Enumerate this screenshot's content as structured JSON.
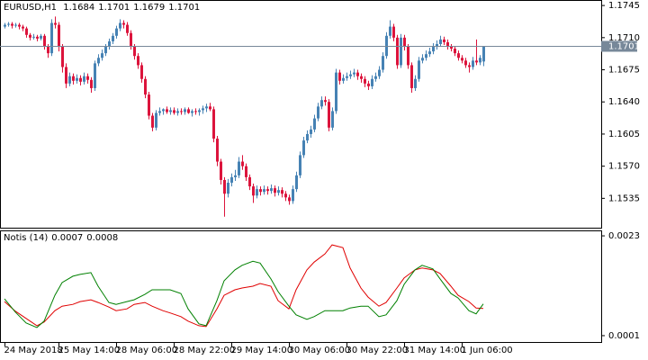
{
  "chart_data": [
    {
      "type": "candlestick",
      "title": "EURUSD,H1",
      "up_color": "#4682b4",
      "down_color": "#dc143c",
      "price_line_color": "#778899",
      "xlim": [
        -1.25,
        165.75
      ],
      "ylim": [
        1.1503,
        1.1751
      ],
      "yticks": [
        1.1535,
        {
          "value": 1.157,
          "label": "1.1570"
        },
        1.1605,
        {
          "value": 1.164,
          "label": "1.1640"
        },
        1.1675,
        {
          "value": 1.171,
          "label": "1.1710"
        },
        1.1745
      ],
      "categories": [
        "24 May 2018",
        null,
        null,
        null,
        null,
        null,
        null,
        null,
        null,
        null,
        null,
        null,
        null,
        null,
        null,
        "25 May 14:00",
        null,
        null,
        null,
        null,
        null,
        null,
        null,
        null,
        null,
        null,
        null,
        null,
        null,
        null,
        null,
        "28 May 06:00",
        null,
        null,
        null,
        null,
        null,
        null,
        null,
        null,
        null,
        null,
        null,
        null,
        null,
        null,
        null,
        "28 May 22:00",
        null,
        null,
        null,
        null,
        null,
        null,
        null,
        null,
        null,
        null,
        null,
        null,
        null,
        null,
        null,
        "29 May 14:00",
        null,
        null,
        null,
        null,
        null,
        null,
        null,
        null,
        null,
        null,
        null,
        null,
        null,
        null,
        null,
        "30 May 06:00",
        null,
        null,
        null,
        null,
        null,
        null,
        null,
        null,
        null,
        null,
        null,
        null,
        null,
        null,
        null,
        "30 May 22:00",
        null,
        null,
        null,
        null,
        null,
        null,
        null,
        null,
        null,
        null,
        null,
        null,
        null,
        null,
        null,
        "31 May 14:00",
        null,
        null,
        null,
        null,
        null,
        null,
        null,
        null,
        null,
        null,
        null,
        null,
        null,
        null,
        null,
        "1 Jun 06:00",
        null,
        null,
        null,
        null,
        null,
        null
      ],
      "ohlc": [
        [
          1.1722,
          1.1726,
          1.172,
          1.1724
        ],
        [
          1.1724,
          1.1727,
          1.1722,
          1.1725
        ],
        [
          1.1725,
          1.1727,
          1.172,
          1.1723
        ],
        [
          1.1723,
          1.1726,
          1.1721,
          1.1724
        ],
        [
          1.1724,
          1.1726,
          1.1719,
          1.1722
        ],
        [
          1.1722,
          1.1724,
          1.1717,
          1.172
        ],
        [
          1.172,
          1.1722,
          1.171,
          1.1713
        ],
        [
          1.1713,
          1.1715,
          1.1707,
          1.171
        ],
        [
          1.171,
          1.1714,
          1.1708,
          1.1711
        ],
        [
          1.1711,
          1.1713,
          1.1706,
          1.1709
        ],
        [
          1.1709,
          1.1714,
          1.1707,
          1.1712
        ],
        [
          1.1712,
          1.1714,
          1.1697,
          1.17
        ],
        [
          1.17,
          1.1703,
          1.1688,
          1.1693
        ],
        [
          1.1693,
          1.173,
          1.169,
          1.1726
        ],
        [
          1.1726,
          1.1733,
          1.172,
          1.1724
        ],
        [
          1.1724,
          1.1727,
          1.1695,
          1.17
        ],
        [
          1.17,
          1.1703,
          1.1672,
          1.1678
        ],
        [
          1.1678,
          1.1682,
          1.1655,
          1.166
        ],
        [
          1.166,
          1.1672,
          1.1657,
          1.1668
        ],
        [
          1.1668,
          1.1671,
          1.1659,
          1.1663
        ],
        [
          1.1663,
          1.167,
          1.166,
          1.1666
        ],
        [
          1.1666,
          1.1669,
          1.1658,
          1.1662
        ],
        [
          1.1662,
          1.1672,
          1.1659,
          1.1668
        ],
        [
          1.1668,
          1.1671,
          1.166,
          1.1664
        ],
        [
          1.1664,
          1.1667,
          1.165,
          1.1655
        ],
        [
          1.1655,
          1.1685,
          1.1652,
          1.1682
        ],
        [
          1.1682,
          1.1692,
          1.1679,
          1.1688
        ],
        [
          1.1688,
          1.1697,
          1.1685,
          1.1693
        ],
        [
          1.1693,
          1.1703,
          1.169,
          1.17
        ],
        [
          1.17,
          1.1709,
          1.1697,
          1.1706
        ],
        [
          1.1706,
          1.1715,
          1.1703,
          1.1712
        ],
        [
          1.1712,
          1.1723,
          1.1709,
          1.172
        ],
        [
          1.172,
          1.173,
          1.1717,
          1.1726
        ],
        [
          1.1726,
          1.1729,
          1.172,
          1.1724
        ],
        [
          1.1724,
          1.1727,
          1.1712,
          1.1715
        ],
        [
          1.1715,
          1.1718,
          1.1697,
          1.17
        ],
        [
          1.17,
          1.1703,
          1.1686,
          1.169
        ],
        [
          1.169,
          1.1693,
          1.1676,
          1.168
        ],
        [
          1.168,
          1.1683,
          1.1661,
          1.1665
        ],
        [
          1.1665,
          1.1668,
          1.1644,
          1.1648
        ],
        [
          1.1648,
          1.1651,
          1.1621,
          1.1625
        ],
        [
          1.1625,
          1.1628,
          1.1608,
          1.1612
        ],
        [
          1.1612,
          1.1631,
          1.1609,
          1.1628
        ],
        [
          1.1628,
          1.1634,
          1.1625,
          1.163
        ],
        [
          1.163,
          1.1633,
          1.1626,
          1.1632
        ],
        [
          1.1632,
          1.1635,
          1.1627,
          1.1629
        ],
        [
          1.1629,
          1.1634,
          1.1626,
          1.1631
        ],
        [
          1.1631,
          1.1634,
          1.1626,
          1.1628
        ],
        [
          1.1628,
          1.1633,
          1.1625,
          1.163
        ],
        [
          1.163,
          1.1633,
          1.1626,
          1.1629
        ],
        [
          1.1629,
          1.1634,
          1.1626,
          1.1632
        ],
        [
          1.1632,
          1.1634,
          1.1627,
          1.1628
        ],
        [
          1.1628,
          1.1632,
          1.1624,
          1.163
        ],
        [
          1.163,
          1.1633,
          1.1626,
          1.1629
        ],
        [
          1.1629,
          1.1633,
          1.1625,
          1.1631
        ],
        [
          1.1631,
          1.1636,
          1.1627,
          1.1633
        ],
        [
          1.1633,
          1.1638,
          1.1629,
          1.1635
        ],
        [
          1.1635,
          1.1639,
          1.163,
          1.1632
        ],
        [
          1.1632,
          1.1635,
          1.1596,
          1.16
        ],
        [
          1.16,
          1.1603,
          1.157,
          1.1575
        ],
        [
          1.1575,
          1.1578,
          1.155,
          1.1555
        ],
        [
          1.1555,
          1.1558,
          1.1515,
          1.154
        ],
        [
          1.154,
          1.1556,
          1.1536,
          1.1552
        ],
        [
          1.1552,
          1.1562,
          1.1548,
          1.1558
        ],
        [
          1.1558,
          1.1566,
          1.1554,
          1.156
        ],
        [
          1.156,
          1.158,
          1.1557,
          1.1575
        ],
        [
          1.1575,
          1.1582,
          1.1566,
          1.157
        ],
        [
          1.157,
          1.1573,
          1.1554,
          1.1558
        ],
        [
          1.1558,
          1.1561,
          1.1544,
          1.1548
        ],
        [
          1.1548,
          1.1551,
          1.153,
          1.1538
        ],
        [
          1.1538,
          1.1549,
          1.1535,
          1.1545
        ],
        [
          1.1545,
          1.1548,
          1.1538,
          1.1542
        ],
        [
          1.1542,
          1.1549,
          1.1539,
          1.1545
        ],
        [
          1.1545,
          1.1548,
          1.1539,
          1.1543
        ],
        [
          1.1543,
          1.155,
          1.154,
          1.1546
        ],
        [
          1.1546,
          1.1549,
          1.1537,
          1.1541
        ],
        [
          1.1541,
          1.1548,
          1.1538,
          1.1544
        ],
        [
          1.1544,
          1.1547,
          1.1536,
          1.154
        ],
        [
          1.154,
          1.1543,
          1.1532,
          1.1536
        ],
        [
          1.1536,
          1.1539,
          1.1528,
          1.1532
        ],
        [
          1.1532,
          1.1549,
          1.1529,
          1.1545
        ],
        [
          1.1545,
          1.1564,
          1.1542,
          1.156
        ],
        [
          1.156,
          1.1586,
          1.1557,
          1.1582
        ],
        [
          1.1582,
          1.1602,
          1.1579,
          1.1598
        ],
        [
          1.1598,
          1.1609,
          1.1595,
          1.1605
        ],
        [
          1.1605,
          1.1614,
          1.1601,
          1.161
        ],
        [
          1.161,
          1.1626,
          1.1607,
          1.1622
        ],
        [
          1.1622,
          1.1639,
          1.1619,
          1.1635
        ],
        [
          1.1635,
          1.1646,
          1.1632,
          1.1642
        ],
        [
          1.1642,
          1.1646,
          1.1636,
          1.164
        ],
        [
          1.164,
          1.1643,
          1.1608,
          1.1612
        ],
        [
          1.1612,
          1.1634,
          1.1609,
          1.163
        ],
        [
          1.163,
          1.1676,
          1.1627,
          1.1672
        ],
        [
          1.1672,
          1.1675,
          1.1659,
          1.1663
        ],
        [
          1.1663,
          1.167,
          1.166,
          1.1666
        ],
        [
          1.1666,
          1.1672,
          1.1663,
          1.1668
        ],
        [
          1.1668,
          1.1674,
          1.1665,
          1.167
        ],
        [
          1.167,
          1.1676,
          1.1667,
          1.1672
        ],
        [
          1.1672,
          1.1675,
          1.1664,
          1.1668
        ],
        [
          1.1668,
          1.1671,
          1.1661,
          1.1665
        ],
        [
          1.1665,
          1.1668,
          1.1656,
          1.166
        ],
        [
          1.166,
          1.1663,
          1.1653,
          1.1657
        ],
        [
          1.1657,
          1.1669,
          1.1654,
          1.1665
        ],
        [
          1.1665,
          1.1672,
          1.1662,
          1.1668
        ],
        [
          1.1668,
          1.1679,
          1.1665,
          1.1675
        ],
        [
          1.1675,
          1.1694,
          1.1672,
          1.169
        ],
        [
          1.169,
          1.1716,
          1.1687,
          1.1712
        ],
        [
          1.1712,
          1.1729,
          1.1709,
          1.1722
        ],
        [
          1.1722,
          1.1725,
          1.1706,
          1.171
        ],
        [
          1.171,
          1.1713,
          1.1676,
          1.168
        ],
        [
          1.168,
          1.1714,
          1.1677,
          1.171
        ],
        [
          1.171,
          1.1713,
          1.1696,
          1.17
        ],
        [
          1.17,
          1.1703,
          1.1676,
          1.168
        ],
        [
          1.168,
          1.1683,
          1.165,
          1.1655
        ],
        [
          1.1655,
          1.1669,
          1.1652,
          1.1665
        ],
        [
          1.1665,
          1.1689,
          1.1662,
          1.1685
        ],
        [
          1.1685,
          1.1692,
          1.1682,
          1.1688
        ],
        [
          1.1688,
          1.1696,
          1.1685,
          1.1692
        ],
        [
          1.1692,
          1.1699,
          1.1689,
          1.1695
        ],
        [
          1.1695,
          1.1704,
          1.1692,
          1.17
        ],
        [
          1.17,
          1.1707,
          1.1697,
          1.1703
        ],
        [
          1.1703,
          1.1712,
          1.17,
          1.1708
        ],
        [
          1.1708,
          1.1711,
          1.1702,
          1.1705
        ],
        [
          1.1705,
          1.1708,
          1.1697,
          1.17
        ],
        [
          1.17,
          1.1703,
          1.1695,
          1.1698
        ],
        [
          1.1698,
          1.1701,
          1.169,
          1.1693
        ],
        [
          1.1693,
          1.1696,
          1.1685,
          1.1688
        ],
        [
          1.1688,
          1.1691,
          1.1682,
          1.1685
        ],
        [
          1.1685,
          1.1688,
          1.1677,
          1.168
        ],
        [
          1.168,
          1.1683,
          1.1672,
          1.1678
        ],
        [
          1.1678,
          1.1689,
          1.1675,
          1.1685
        ],
        [
          1.1685,
          1.1708,
          1.168,
          1.1683
        ],
        [
          1.1683,
          1.1691,
          1.168,
          1.1688
        ],
        [
          1.1684,
          1.1701,
          1.1679,
          1.1701
        ]
      ]
    },
    {
      "type": "line",
      "title": "Notis (14)",
      "xlim": [
        -1.25,
        165.75
      ],
      "ylim": [
        -4e-05,
        0.00242
      ],
      "yticks": [
        0.0023,
        0.0001
      ],
      "x": [
        0,
        3,
        6,
        9,
        11,
        14,
        16,
        19,
        21,
        24,
        26,
        29,
        31,
        34,
        36,
        39,
        41,
        44,
        46,
        49,
        51,
        54,
        56,
        59,
        61,
        64,
        66,
        69,
        71,
        74,
        76,
        79,
        81,
        84,
        86,
        89,
        91,
        94,
        96,
        99,
        101,
        104,
        106,
        109,
        111,
        114,
        116,
        119,
        121,
        124,
        126,
        129,
        131,
        133
      ],
      "series": [
        {
          "color": "#e00000",
          "values": [
            0.00085,
            0.00064,
            0.00048,
            0.00032,
            0.0004,
            0.00065,
            0.00075,
            0.00079,
            0.00085,
            0.00089,
            0.00083,
            0.00073,
            0.00065,
            0.00069,
            0.00079,
            0.00083,
            0.00075,
            0.00065,
            0.0006,
            0.00052,
            0.00042,
            0.00032,
            0.0003,
            0.00069,
            0.00099,
            0.00111,
            0.00115,
            0.00119,
            0.00125,
            0.00119,
            0.00087,
            0.00069,
            0.00111,
            0.00155,
            0.00172,
            0.0019,
            0.0021,
            0.00204,
            0.00159,
            0.00115,
            0.00095,
            0.00075,
            0.00083,
            0.00115,
            0.00137,
            0.00155,
            0.00159,
            0.00155,
            0.00147,
            0.00119,
            0.00099,
            0.00085,
            0.00071,
            0.0007
          ]
        },
        {
          "color": "#008000",
          "values": [
            0.00091,
            0.00062,
            0.00038,
            0.00028,
            0.00042,
            0.00099,
            0.00127,
            0.00141,
            0.00145,
            0.00149,
            0.00119,
            0.00083,
            0.00079,
            0.00085,
            0.00089,
            0.00101,
            0.00111,
            0.00111,
            0.00111,
            0.00103,
            0.00069,
            0.00036,
            0.00032,
            0.00087,
            0.00131,
            0.00155,
            0.00165,
            0.00174,
            0.0017,
            0.00135,
            0.00107,
            0.00075,
            0.00056,
            0.00046,
            0.00052,
            0.00065,
            0.00065,
            0.00065,
            0.00071,
            0.00075,
            0.00075,
            0.00052,
            0.00056,
            0.00087,
            0.00123,
            0.00155,
            0.00165,
            0.00157,
            0.00135,
            0.00103,
            0.00093,
            0.00065,
            0.00058,
            0.0008
          ]
        }
      ]
    }
  ]
}
